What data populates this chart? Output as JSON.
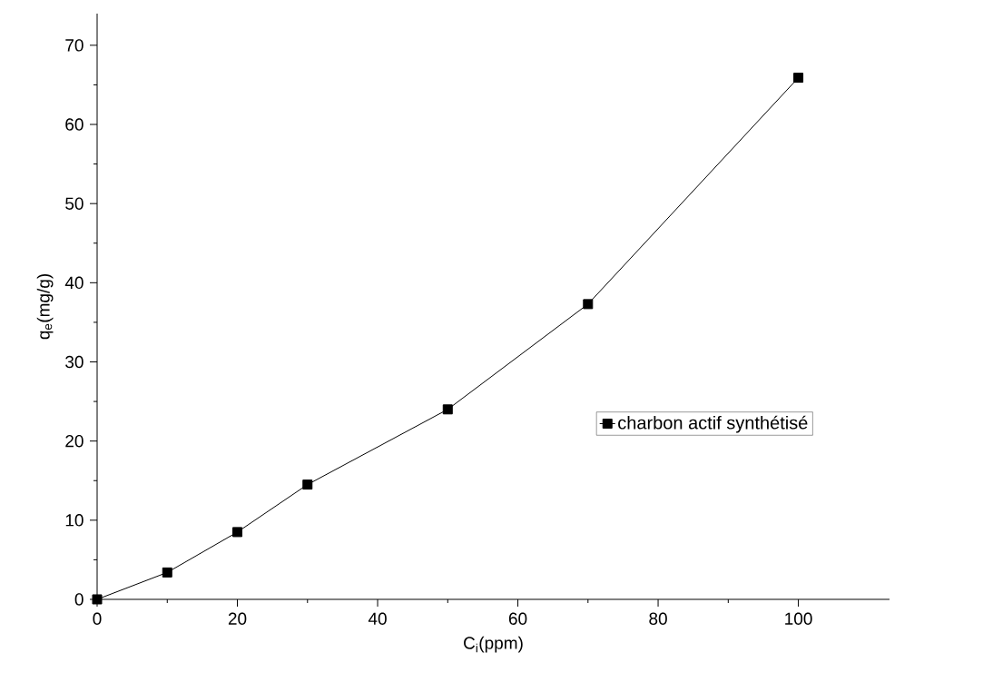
{
  "chart_data": {
    "type": "line",
    "xlabel": "C$_{i}$(ppm)",
    "ylabel": "q$_{e}$(mg/g)",
    "x": [
      0,
      10,
      20,
      30,
      50,
      70,
      100
    ],
    "series": [
      {
        "name": "charbon actif synthétisé",
        "color": "#000000",
        "values": [
          0,
          3.4,
          8.5,
          14.5,
          24.0,
          37.3,
          65.9
        ]
      }
    ],
    "xlim": [
      0,
      113
    ],
    "ylim": [
      0,
      74
    ],
    "xticks": [
      0,
      20,
      40,
      60,
      80,
      100
    ],
    "yticks": [
      0,
      10,
      20,
      30,
      40,
      50,
      60,
      70
    ],
    "marker": "square",
    "line_style": "solid",
    "legend": "right",
    "grid": false
  }
}
